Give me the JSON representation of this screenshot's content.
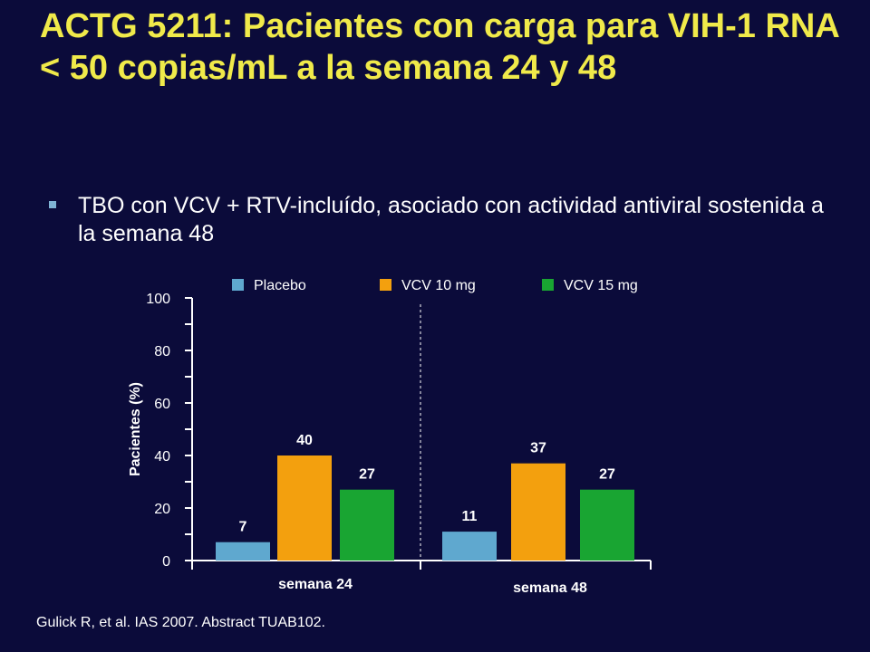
{
  "title": "ACTG 5211: Pacientes con carga para VIH-1 RNA < 50 copias/mL a la semana 24 y 48",
  "bullet": "TBO con VCV + RTV-incluído, asociado con actividad antiviral sostenida a la semana 48",
  "source": "Gulick R, et al. IAS 2007. Abstract TUAB102.",
  "chart_data": {
    "type": "bar",
    "categories": [
      "semana 24",
      "semana 48"
    ],
    "series": [
      {
        "name": "Placebo",
        "values": [
          7,
          11
        ],
        "color": "#5fa8cf"
      },
      {
        "name": "VCV 10 mg",
        "values": [
          40,
          37
        ],
        "color": "#f3a00e"
      },
      {
        "name": "VCV 15 mg",
        "values": [
          27,
          27
        ],
        "color": "#19a532"
      }
    ],
    "ylabel": "Pacientes (%)",
    "ylim": [
      0,
      100
    ],
    "yticks": [
      0,
      20,
      40,
      60,
      80,
      100
    ],
    "legend_position": "top",
    "grid": false,
    "data_labels": true
  }
}
